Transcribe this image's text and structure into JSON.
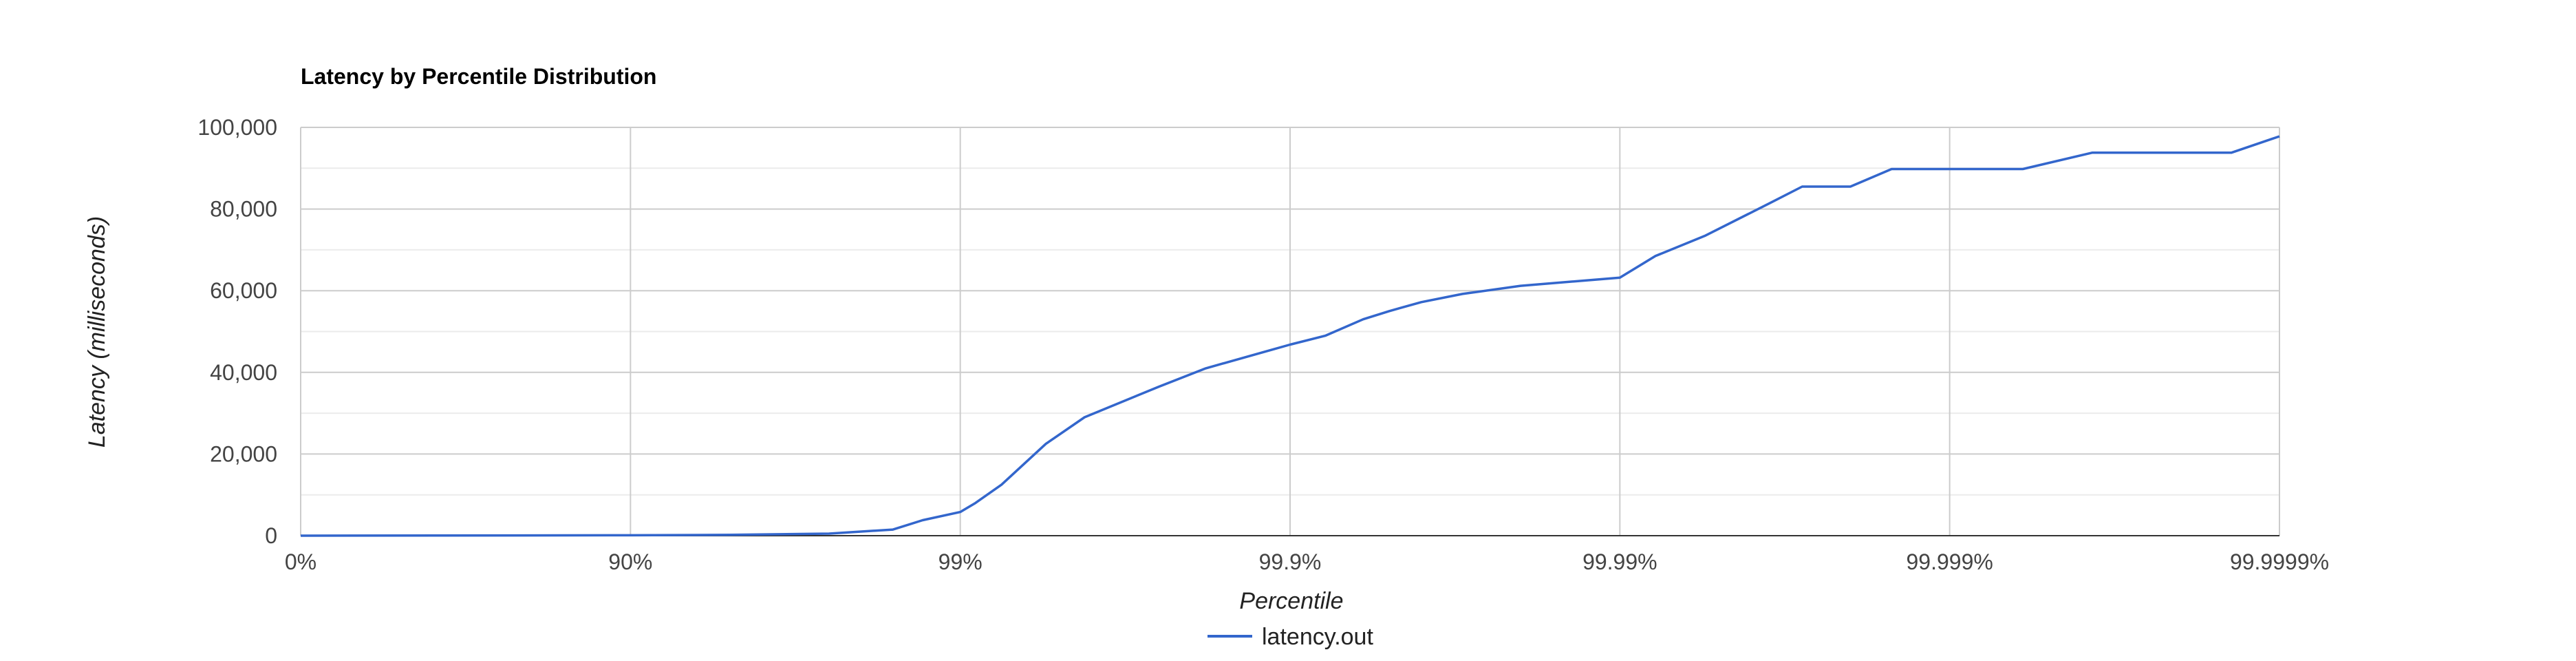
{
  "chart_data": {
    "type": "line",
    "title": "Latency by Percentile Distribution",
    "xlabel": "Percentile",
    "ylabel": "Latency (milliseconds)",
    "x_scale": "log-percentile",
    "x_ticks": [
      "0%",
      "90%",
      "99%",
      "99.9%",
      "99.99%",
      "99.999%",
      "99.9999%"
    ],
    "y_ticks": [
      "0",
      "20,000",
      "40,000",
      "60,000",
      "80,000",
      "100,000"
    ],
    "ylim": [
      0,
      100000
    ],
    "grid": true,
    "legend_position": "bottom",
    "series": [
      {
        "name": "latency.out",
        "color": "#3366cc",
        "points": [
          {
            "x": 0,
            "y": 0
          },
          {
            "x": 90,
            "y": 100
          },
          {
            "x": 95,
            "y": 200
          },
          {
            "x": 97.5,
            "y": 500
          },
          {
            "x": 98.4,
            "y": 1500
          },
          {
            "x": 98.7,
            "y": 3800
          },
          {
            "x": 99,
            "y": 5800
          },
          {
            "x": 99.1,
            "y": 8000
          },
          {
            "x": 99.25,
            "y": 12500
          },
          {
            "x": 99.45,
            "y": 22500
          },
          {
            "x": 99.58,
            "y": 29000
          },
          {
            "x": 99.75,
            "y": 36500
          },
          {
            "x": 99.82,
            "y": 41000
          },
          {
            "x": 99.9,
            "y": 46800
          },
          {
            "x": 99.922,
            "y": 49000
          },
          {
            "x": 99.94,
            "y": 53000
          },
          {
            "x": 99.95,
            "y": 55000
          },
          {
            "x": 99.96,
            "y": 57200
          },
          {
            "x": 99.97,
            "y": 59200
          },
          {
            "x": 99.98,
            "y": 61200
          },
          {
            "x": 99.99,
            "y": 63200
          },
          {
            "x": 99.9922,
            "y": 68500
          },
          {
            "x": 99.9945,
            "y": 73500
          },
          {
            "x": 99.9965,
            "y": 81500
          },
          {
            "x": 99.9972,
            "y": 85500
          },
          {
            "x": 99.998,
            "y": 85500
          },
          {
            "x": 99.9985,
            "y": 89800
          },
          {
            "x": 99.999,
            "y": 89800
          },
          {
            "x": 99.9994,
            "y": 89800
          },
          {
            "x": 99.99963,
            "y": 93800
          },
          {
            "x": 99.99986,
            "y": 93800
          },
          {
            "x": 99.9999,
            "y": 97800
          }
        ]
      }
    ]
  }
}
